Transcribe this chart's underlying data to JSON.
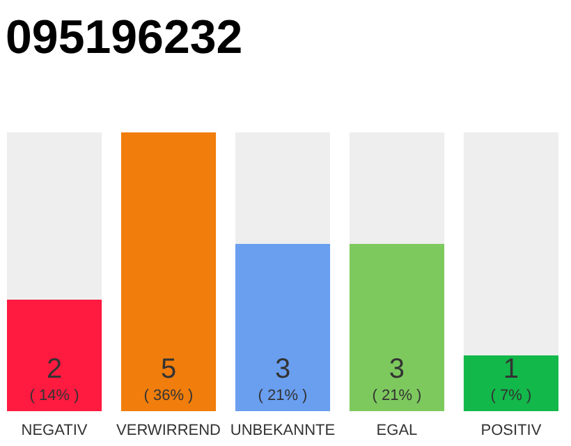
{
  "chart_data": {
    "type": "bar",
    "title": "095196232",
    "categories": [
      "NEGATIV",
      "VERWIRREND",
      "UNBEKANNTE",
      "EGAL",
      "POSITIV"
    ],
    "values": [
      2,
      5,
      3,
      3,
      1
    ],
    "colors": [
      "#ff1a40",
      "#f07d0c",
      "#6a9ff0",
      "#7dc95e",
      "#12b84a"
    ],
    "data_labels": true,
    "annotations": [
      "( 14% )",
      "( 36% )",
      "( 21% )",
      "( 21% )",
      "( 7% )"
    ]
  }
}
